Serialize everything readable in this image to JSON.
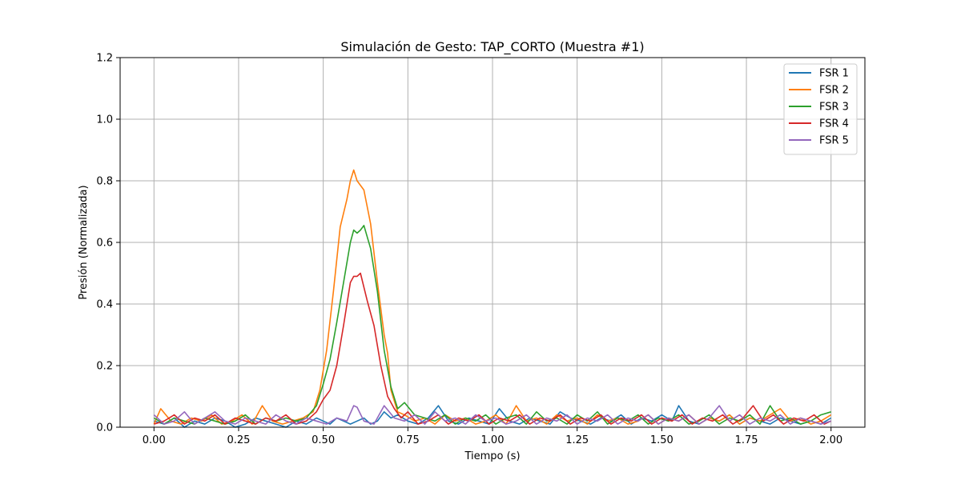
{
  "chart_data": {
    "type": "line",
    "title": "Simulación de Gesto: TAP_CORTO (Muestra #1)",
    "xlabel": "Tiempo (s)",
    "ylabel": "Presión (Normalizada)",
    "xlim": [
      -0.1,
      2.1
    ],
    "ylim": [
      0,
      1.2
    ],
    "xticks": [
      0.0,
      0.25,
      0.5,
      0.75,
      1.0,
      1.25,
      1.5,
      1.75,
      2.0
    ],
    "xtick_labels": [
      "0.00",
      "0.25",
      "0.50",
      "0.75",
      "1.00",
      "1.25",
      "1.50",
      "1.75",
      "2.00"
    ],
    "yticks": [
      0.0,
      0.2,
      0.4,
      0.6,
      0.8,
      1.0,
      1.2
    ],
    "ytick_labels": [
      "0.0",
      "0.2",
      "0.4",
      "0.6",
      "0.8",
      "1.0",
      "1.2"
    ],
    "grid": true,
    "legend_position": "top-right",
    "series": [
      {
        "name": "FSR 1",
        "color": "#1f77b4",
        "x": [
          0.0,
          0.03,
          0.06,
          0.09,
          0.12,
          0.15,
          0.18,
          0.21,
          0.24,
          0.27,
          0.3,
          0.33,
          0.36,
          0.39,
          0.42,
          0.45,
          0.48,
          0.5,
          0.52,
          0.54,
          0.56,
          0.58,
          0.6,
          0.62,
          0.64,
          0.66,
          0.68,
          0.7,
          0.72,
          0.75,
          0.78,
          0.81,
          0.84,
          0.87,
          0.9,
          0.93,
          0.96,
          0.99,
          1.02,
          1.05,
          1.08,
          1.11,
          1.14,
          1.17,
          1.2,
          1.23,
          1.26,
          1.29,
          1.32,
          1.35,
          1.38,
          1.41,
          1.44,
          1.47,
          1.5,
          1.53,
          1.55,
          1.58,
          1.61,
          1.64,
          1.67,
          1.7,
          1.73,
          1.76,
          1.79,
          1.82,
          1.85,
          1.88,
          1.91,
          1.94,
          1.97,
          2.0
        ],
        "y": [
          0.02,
          0.01,
          0.03,
          0.0,
          0.02,
          0.01,
          0.03,
          0.02,
          0.0,
          0.01,
          0.03,
          0.02,
          0.01,
          0.0,
          0.02,
          0.01,
          0.03,
          0.02,
          0.01,
          0.03,
          0.02,
          0.01,
          0.02,
          0.03,
          0.01,
          0.02,
          0.05,
          0.03,
          0.04,
          0.02,
          0.01,
          0.03,
          0.07,
          0.02,
          0.01,
          0.03,
          0.02,
          0.01,
          0.06,
          0.02,
          0.01,
          0.03,
          0.02,
          0.01,
          0.05,
          0.03,
          0.02,
          0.01,
          0.03,
          0.02,
          0.04,
          0.01,
          0.03,
          0.02,
          0.04,
          0.02,
          0.07,
          0.02,
          0.01,
          0.03,
          0.02,
          0.04,
          0.01,
          0.03,
          0.02,
          0.01,
          0.03,
          0.02,
          0.01,
          0.02,
          0.01,
          0.03
        ]
      },
      {
        "name": "FSR 2",
        "color": "#ff7f0e",
        "x": [
          0.0,
          0.02,
          0.05,
          0.08,
          0.11,
          0.14,
          0.17,
          0.2,
          0.23,
          0.26,
          0.29,
          0.32,
          0.35,
          0.38,
          0.41,
          0.44,
          0.47,
          0.49,
          0.51,
          0.53,
          0.55,
          0.57,
          0.58,
          0.59,
          0.6,
          0.62,
          0.64,
          0.66,
          0.68,
          0.69,
          0.7,
          0.72,
          0.74,
          0.77,
          0.8,
          0.83,
          0.86,
          0.89,
          0.92,
          0.95,
          0.98,
          1.01,
          1.04,
          1.07,
          1.1,
          1.13,
          1.16,
          1.19,
          1.22,
          1.25,
          1.28,
          1.31,
          1.34,
          1.37,
          1.4,
          1.43,
          1.46,
          1.49,
          1.52,
          1.55,
          1.58,
          1.61,
          1.64,
          1.67,
          1.7,
          1.73,
          1.76,
          1.79,
          1.82,
          1.85,
          1.88,
          1.91,
          1.94,
          1.97,
          2.0
        ],
        "y": [
          0.01,
          0.06,
          0.02,
          0.01,
          0.03,
          0.02,
          0.04,
          0.01,
          0.02,
          0.04,
          0.01,
          0.07,
          0.02,
          0.01,
          0.02,
          0.03,
          0.05,
          0.12,
          0.25,
          0.44,
          0.65,
          0.74,
          0.8,
          0.835,
          0.8,
          0.77,
          0.66,
          0.47,
          0.3,
          0.24,
          0.12,
          0.05,
          0.04,
          0.02,
          0.03,
          0.01,
          0.04,
          0.02,
          0.03,
          0.01,
          0.02,
          0.04,
          0.01,
          0.07,
          0.02,
          0.03,
          0.01,
          0.04,
          0.02,
          0.03,
          0.01,
          0.04,
          0.02,
          0.03,
          0.01,
          0.02,
          0.04,
          0.01,
          0.03,
          0.02,
          0.04,
          0.01,
          0.03,
          0.02,
          0.04,
          0.01,
          0.03,
          0.02,
          0.04,
          0.06,
          0.02,
          0.03,
          0.01,
          0.02,
          0.04
        ]
      },
      {
        "name": "FSR 3",
        "color": "#2ca02c",
        "x": [
          0.0,
          0.03,
          0.06,
          0.09,
          0.12,
          0.15,
          0.18,
          0.21,
          0.24,
          0.27,
          0.3,
          0.33,
          0.36,
          0.39,
          0.42,
          0.45,
          0.48,
          0.5,
          0.52,
          0.54,
          0.56,
          0.58,
          0.59,
          0.6,
          0.61,
          0.62,
          0.64,
          0.66,
          0.68,
          0.7,
          0.72,
          0.74,
          0.77,
          0.8,
          0.83,
          0.86,
          0.89,
          0.92,
          0.95,
          0.98,
          1.01,
          1.04,
          1.07,
          1.1,
          1.13,
          1.16,
          1.19,
          1.22,
          1.25,
          1.28,
          1.31,
          1.34,
          1.37,
          1.4,
          1.43,
          1.46,
          1.49,
          1.52,
          1.55,
          1.58,
          1.61,
          1.64,
          1.67,
          1.7,
          1.73,
          1.76,
          1.79,
          1.82,
          1.85,
          1.88,
          1.91,
          1.94,
          1.97,
          2.0
        ],
        "y": [
          0.03,
          0.01,
          0.03,
          0.02,
          0.01,
          0.03,
          0.02,
          0.01,
          0.02,
          0.04,
          0.01,
          0.03,
          0.02,
          0.03,
          0.02,
          0.03,
          0.07,
          0.14,
          0.22,
          0.34,
          0.47,
          0.6,
          0.64,
          0.63,
          0.64,
          0.655,
          0.58,
          0.44,
          0.25,
          0.13,
          0.06,
          0.08,
          0.04,
          0.03,
          0.02,
          0.04,
          0.01,
          0.03,
          0.02,
          0.04,
          0.01,
          0.03,
          0.04,
          0.01,
          0.05,
          0.02,
          0.03,
          0.01,
          0.04,
          0.02,
          0.05,
          0.01,
          0.03,
          0.02,
          0.04,
          0.01,
          0.03,
          0.02,
          0.04,
          0.01,
          0.02,
          0.04,
          0.01,
          0.03,
          0.02,
          0.04,
          0.01,
          0.07,
          0.02,
          0.03,
          0.01,
          0.02,
          0.04,
          0.05
        ]
      },
      {
        "name": "FSR 4",
        "color": "#d62728",
        "x": [
          0.0,
          0.03,
          0.06,
          0.09,
          0.12,
          0.15,
          0.18,
          0.21,
          0.24,
          0.27,
          0.3,
          0.33,
          0.36,
          0.39,
          0.42,
          0.45,
          0.48,
          0.5,
          0.52,
          0.54,
          0.56,
          0.58,
          0.59,
          0.6,
          0.61,
          0.63,
          0.65,
          0.67,
          0.69,
          0.71,
          0.73,
          0.75,
          0.78,
          0.81,
          0.84,
          0.87,
          0.9,
          0.93,
          0.96,
          0.99,
          1.02,
          1.05,
          1.08,
          1.11,
          1.14,
          1.17,
          1.2,
          1.23,
          1.26,
          1.29,
          1.32,
          1.35,
          1.38,
          1.41,
          1.44,
          1.47,
          1.5,
          1.53,
          1.56,
          1.59,
          1.62,
          1.65,
          1.68,
          1.71,
          1.74,
          1.77,
          1.8,
          1.83,
          1.86,
          1.89,
          1.92,
          1.95,
          1.98,
          2.0
        ],
        "y": [
          0.01,
          0.02,
          0.04,
          0.01,
          0.03,
          0.02,
          0.04,
          0.01,
          0.03,
          0.02,
          0.01,
          0.03,
          0.02,
          0.04,
          0.01,
          0.02,
          0.05,
          0.09,
          0.12,
          0.2,
          0.33,
          0.47,
          0.49,
          0.49,
          0.5,
          0.41,
          0.33,
          0.2,
          0.1,
          0.06,
          0.03,
          0.05,
          0.01,
          0.02,
          0.04,
          0.01,
          0.03,
          0.02,
          0.04,
          0.01,
          0.03,
          0.02,
          0.04,
          0.01,
          0.03,
          0.02,
          0.04,
          0.01,
          0.03,
          0.02,
          0.04,
          0.01,
          0.03,
          0.02,
          0.04,
          0.01,
          0.03,
          0.02,
          0.04,
          0.01,
          0.03,
          0.02,
          0.04,
          0.01,
          0.03,
          0.07,
          0.02,
          0.04,
          0.01,
          0.03,
          0.02,
          0.04,
          0.01,
          0.02
        ]
      },
      {
        "name": "FSR 5",
        "color": "#9467bd",
        "x": [
          0.0,
          0.03,
          0.06,
          0.09,
          0.12,
          0.15,
          0.18,
          0.21,
          0.24,
          0.27,
          0.3,
          0.33,
          0.36,
          0.39,
          0.42,
          0.45,
          0.48,
          0.51,
          0.54,
          0.57,
          0.59,
          0.6,
          0.62,
          0.65,
          0.68,
          0.71,
          0.74,
          0.77,
          0.8,
          0.83,
          0.86,
          0.89,
          0.92,
          0.95,
          0.98,
          1.01,
          1.04,
          1.07,
          1.1,
          1.13,
          1.16,
          1.19,
          1.22,
          1.25,
          1.28,
          1.31,
          1.34,
          1.37,
          1.4,
          1.43,
          1.46,
          1.49,
          1.52,
          1.55,
          1.58,
          1.61,
          1.64,
          1.67,
          1.7,
          1.73,
          1.76,
          1.79,
          1.82,
          1.85,
          1.88,
          1.91,
          1.94,
          1.97,
          2.0
        ],
        "y": [
          0.04,
          0.01,
          0.02,
          0.05,
          0.01,
          0.03,
          0.05,
          0.02,
          0.01,
          0.03,
          0.02,
          0.01,
          0.04,
          0.02,
          0.01,
          0.03,
          0.02,
          0.01,
          0.03,
          0.02,
          0.07,
          0.065,
          0.02,
          0.01,
          0.07,
          0.03,
          0.02,
          0.04,
          0.01,
          0.05,
          0.02,
          0.03,
          0.01,
          0.04,
          0.02,
          0.03,
          0.01,
          0.02,
          0.04,
          0.01,
          0.03,
          0.02,
          0.04,
          0.01,
          0.03,
          0.02,
          0.04,
          0.01,
          0.03,
          0.02,
          0.04,
          0.01,
          0.03,
          0.02,
          0.04,
          0.01,
          0.03,
          0.07,
          0.02,
          0.04,
          0.01,
          0.03,
          0.02,
          0.04,
          0.01,
          0.03,
          0.02,
          0.01,
          0.02
        ]
      }
    ]
  }
}
